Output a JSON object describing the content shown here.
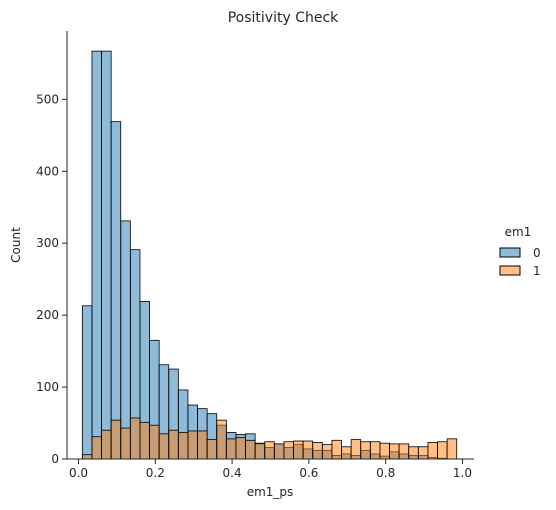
{
  "chart_data": {
    "type": "bar",
    "subtype": "overlapping-histogram",
    "title": "Positivity Check",
    "xlabel": "em1_ps",
    "ylabel": "Count",
    "xlim": [
      -0.03,
      1.03
    ],
    "ylim": [
      0,
      595
    ],
    "xticks": [
      "0.0",
      "0.2",
      "0.4",
      "0.6",
      "0.8",
      "1.0"
    ],
    "yticks": [
      "0",
      "100",
      "200",
      "300",
      "400",
      "500"
    ],
    "grid": false,
    "legend": {
      "title": "em1",
      "position": "right",
      "entries": [
        "0",
        "1"
      ]
    },
    "colors": {
      "series_0": "#1f77b4",
      "series_1": "#ff7f0e",
      "edge": "#000000",
      "axis": "#262626"
    },
    "bin_edges": [
      0.01,
      0.035,
      0.06,
      0.085,
      0.11,
      0.135,
      0.16,
      0.185,
      0.21,
      0.235,
      0.26,
      0.285,
      0.31,
      0.335,
      0.36,
      0.385,
      0.41,
      0.435,
      0.46,
      0.485,
      0.51,
      0.535,
      0.56,
      0.585,
      0.61,
      0.635,
      0.66,
      0.685,
      0.71,
      0.735,
      0.76,
      0.785,
      0.81,
      0.835,
      0.86,
      0.885,
      0.91,
      0.935,
      0.96,
      0.985
    ],
    "series": [
      {
        "name": "0",
        "values": [
          213,
          567,
          567,
          469,
          331,
          291,
          219,
          165,
          131,
          125,
          96,
          75,
          70,
          63,
          47,
          37,
          34,
          35,
          21,
          16,
          21,
          16,
          20,
          14,
          12,
          12,
          5,
          7,
          5,
          12,
          7,
          4,
          10,
          7,
          5,
          5,
          2,
          1,
          0
        ]
      },
      {
        "name": "1",
        "values": [
          6,
          31,
          40,
          54,
          43,
          57,
          51,
          47,
          35,
          40,
          37,
          39,
          39,
          27,
          54,
          28,
          30,
          26,
          22,
          24,
          21,
          24,
          25,
          25,
          23,
          20,
          26,
          17,
          27,
          24,
          24,
          22,
          21,
          21,
          17,
          17,
          23,
          24,
          28
        ]
      }
    ]
  }
}
